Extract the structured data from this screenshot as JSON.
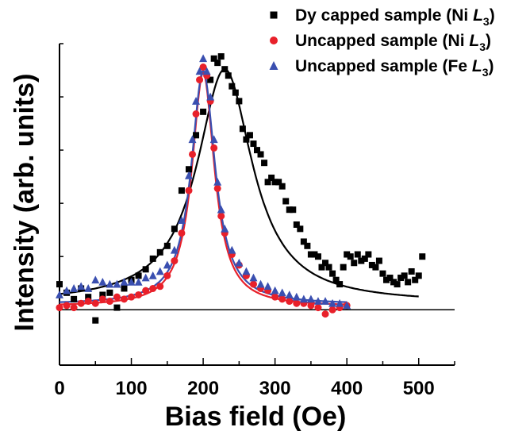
{
  "chart_data": {
    "type": "scatter",
    "xlabel": "Bias field (Oe)",
    "ylabel": "Intensity (arb. units)",
    "xlim": [
      0,
      550
    ],
    "ylim": [
      -0.26,
      1.25
    ],
    "x_ticks": [
      "0",
      "100",
      "200",
      "300",
      "400",
      "500"
    ],
    "grid": false,
    "legend_position": "top-right",
    "series": [
      {
        "name": "Dy capped sample (Ni L3)",
        "legend_main": "Dy capped sample (Ni ",
        "legend_element": "L",
        "legend_sub": "3",
        "legend_end": ")",
        "marker": "square",
        "color": "#000000",
        "points": [
          [
            0,
            0.12
          ],
          [
            10,
            0.08
          ],
          [
            20,
            0.05
          ],
          [
            30,
            0.1
          ],
          [
            40,
            0.06
          ],
          [
            50,
            -0.05
          ],
          [
            60,
            0.07
          ],
          [
            70,
            0.08
          ],
          [
            80,
            0.01
          ],
          [
            90,
            0.1
          ],
          [
            100,
            0.14
          ],
          [
            110,
            0.16
          ],
          [
            120,
            0.19
          ],
          [
            130,
            0.24
          ],
          [
            140,
            0.27
          ],
          [
            150,
            0.3
          ],
          [
            160,
            0.38
          ],
          [
            170,
            0.56
          ],
          [
            180,
            0.66
          ],
          [
            190,
            0.82
          ],
          [
            200,
            0.93
          ],
          [
            210,
            1.08
          ],
          [
            215,
            1.18
          ],
          [
            220,
            1.16
          ],
          [
            225,
            1.19
          ],
          [
            230,
            1.13
          ],
          [
            235,
            1.1
          ],
          [
            240,
            1.05
          ],
          [
            245,
            1.02
          ],
          [
            250,
            0.98
          ],
          [
            255,
            0.85
          ],
          [
            260,
            0.8
          ],
          [
            265,
            0.82
          ],
          [
            270,
            0.78
          ],
          [
            275,
            0.75
          ],
          [
            280,
            0.73
          ],
          [
            285,
            0.69
          ],
          [
            290,
            0.6
          ],
          [
            295,
            0.62
          ],
          [
            300,
            0.6
          ],
          [
            305,
            0.6
          ],
          [
            310,
            0.58
          ],
          [
            315,
            0.51
          ],
          [
            320,
            0.47
          ],
          [
            325,
            0.47
          ],
          [
            330,
            0.4
          ],
          [
            335,
            0.38
          ],
          [
            340,
            0.32
          ],
          [
            345,
            0.3
          ],
          [
            350,
            0.26
          ],
          [
            355,
            0.26
          ],
          [
            360,
            0.25
          ],
          [
            365,
            0.2
          ],
          [
            370,
            0.22
          ],
          [
            375,
            0.2
          ],
          [
            380,
            0.17
          ],
          [
            385,
            0.14
          ],
          [
            390,
            0.12
          ],
          [
            395,
            0.2
          ],
          [
            400,
            0.26
          ],
          [
            405,
            0.25
          ],
          [
            410,
            0.22
          ],
          [
            415,
            0.26
          ],
          [
            420,
            0.23
          ],
          [
            425,
            0.24
          ],
          [
            430,
            0.26
          ],
          [
            435,
            0.21
          ],
          [
            440,
            0.2
          ],
          [
            445,
            0.23
          ],
          [
            450,
            0.17
          ],
          [
            455,
            0.14
          ],
          [
            460,
            0.15
          ],
          [
            465,
            0.13
          ],
          [
            470,
            0.12
          ],
          [
            475,
            0.15
          ],
          [
            480,
            0.16
          ],
          [
            485,
            0.13
          ],
          [
            490,
            0.18
          ],
          [
            495,
            0.14
          ],
          [
            500,
            0.16
          ],
          [
            505,
            0.25
          ]
        ]
      },
      {
        "name": "Uncapped sample (Ni L3)",
        "legend_main": "Uncapped sample (Ni ",
        "legend_element": "L",
        "legend_sub": "3",
        "legend_end": ")",
        "marker": "circle",
        "color": "#e8202a",
        "points": [
          [
            0,
            0.01
          ],
          [
            10,
            0.02
          ],
          [
            20,
            0.01
          ],
          [
            30,
            0.03
          ],
          [
            40,
            0.04
          ],
          [
            50,
            0.03
          ],
          [
            60,
            0.05
          ],
          [
            70,
            0.04
          ],
          [
            80,
            0.06
          ],
          [
            90,
            0.05
          ],
          [
            100,
            0.06
          ],
          [
            110,
            0.07
          ],
          [
            120,
            0.09
          ],
          [
            130,
            0.1
          ],
          [
            140,
            0.11
          ],
          [
            150,
            0.16
          ],
          [
            160,
            0.23
          ],
          [
            170,
            0.36
          ],
          [
            180,
            0.56
          ],
          [
            185,
            0.73
          ],
          [
            190,
            0.92
          ],
          [
            195,
            1.08
          ],
          [
            200,
            1.14
          ],
          [
            205,
            1.1
          ],
          [
            210,
            0.98
          ],
          [
            215,
            0.76
          ],
          [
            220,
            0.57
          ],
          [
            225,
            0.44
          ],
          [
            230,
            0.36
          ],
          [
            240,
            0.26
          ],
          [
            250,
            0.21
          ],
          [
            260,
            0.16
          ],
          [
            270,
            0.12
          ],
          [
            280,
            0.1
          ],
          [
            290,
            0.09
          ],
          [
            300,
            0.06
          ],
          [
            310,
            0.05
          ],
          [
            320,
            0.04
          ],
          [
            330,
            0.03
          ],
          [
            340,
            0.03
          ],
          [
            350,
            0.02
          ],
          [
            360,
            0.01
          ],
          [
            370,
            -0.02
          ],
          [
            380,
            0.0
          ],
          [
            390,
            0.01
          ],
          [
            400,
            0.02
          ]
        ]
      },
      {
        "name": "Uncapped sample (Fe L3)",
        "legend_main": "Uncapped sample (Fe ",
        "legend_element": "L",
        "legend_sub": "3",
        "legend_end": ")",
        "marker": "triangle",
        "color": "#3a4fb0",
        "points": [
          [
            0,
            0.07
          ],
          [
            10,
            0.09
          ],
          [
            20,
            0.1
          ],
          [
            30,
            0.11
          ],
          [
            40,
            0.1
          ],
          [
            50,
            0.14
          ],
          [
            60,
            0.13
          ],
          [
            70,
            0.12
          ],
          [
            80,
            0.12
          ],
          [
            90,
            0.13
          ],
          [
            100,
            0.13
          ],
          [
            110,
            0.13
          ],
          [
            120,
            0.15
          ],
          [
            130,
            0.16
          ],
          [
            140,
            0.18
          ],
          [
            150,
            0.21
          ],
          [
            160,
            0.28
          ],
          [
            170,
            0.42
          ],
          [
            180,
            0.63
          ],
          [
            185,
            0.8
          ],
          [
            190,
            0.98
          ],
          [
            195,
            1.12
          ],
          [
            200,
            1.18
          ],
          [
            205,
            1.12
          ],
          [
            210,
            1.0
          ],
          [
            215,
            0.8
          ],
          [
            220,
            0.6
          ],
          [
            225,
            0.47
          ],
          [
            230,
            0.38
          ],
          [
            240,
            0.28
          ],
          [
            250,
            0.22
          ],
          [
            260,
            0.18
          ],
          [
            270,
            0.15
          ],
          [
            280,
            0.12
          ],
          [
            290,
            0.11
          ],
          [
            300,
            0.09
          ],
          [
            310,
            0.08
          ],
          [
            320,
            0.07
          ],
          [
            330,
            0.06
          ],
          [
            340,
            0.05
          ],
          [
            350,
            0.05
          ],
          [
            360,
            0.04
          ],
          [
            370,
            0.04
          ],
          [
            380,
            0.03
          ],
          [
            390,
            0.03
          ],
          [
            400,
            0.02
          ]
        ]
      }
    ],
    "fits": [
      {
        "series": "Dy capped sample (Ni L3)",
        "shape": "lorentzian",
        "center": 230,
        "half_width": 47,
        "amplitude": 1.1,
        "baseline": 0.03,
        "x_range": [
          0,
          500
        ],
        "color": "#000000"
      },
      {
        "series": "Uncapped sample (Ni L3)",
        "shape": "lorentzian",
        "center": 200,
        "half_width": 19,
        "amplitude": 1.1,
        "baseline": 0.015,
        "x_range": [
          0,
          400
        ],
        "color": "#e8202a"
      },
      {
        "series": "Uncapped sample (Fe L3)",
        "shape": "lorentzian",
        "center": 200,
        "half_width": 20,
        "amplitude": 1.1,
        "baseline": 0.025,
        "x_range": [
          0,
          400
        ],
        "color": "#3a4fb0"
      }
    ],
    "baseline_y": 0
  }
}
